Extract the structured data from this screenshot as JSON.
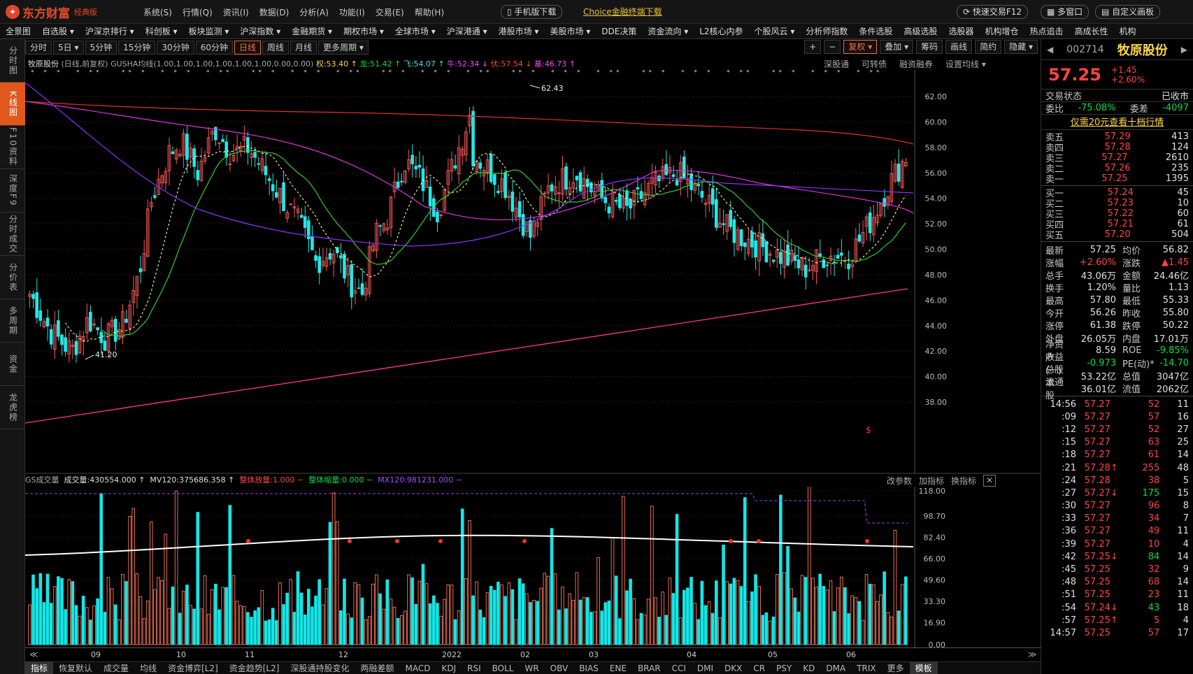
{
  "app": {
    "logo_name": "东方财富",
    "edition": "经典版",
    "icon": "logo-icon"
  },
  "menu": [
    "系统(S)",
    "行情(Q)",
    "资讯(I)",
    "数据(D)",
    "分析(A)",
    "功能(I)",
    "交易(E)",
    "帮助(H)"
  ],
  "top_buttons": {
    "mobile": "手机版下载",
    "choice": "Choice金融终端下载",
    "quick_trade": "快速交易F12",
    "multi_window": "多窗口",
    "custom_layout": "自定义画板"
  },
  "nav": [
    "全景图",
    "自选股 ▾",
    "沪深京排行 ▾",
    "科创板 ▾",
    "板块监测 ▾",
    "沪深指数 ▾",
    "金融期货 ▾",
    "期权市场 ▾",
    "全球市场 ▾",
    "沪深港通 ▾",
    "港股市场 ▾",
    "美股市场 ▾",
    "DDE决策",
    "资金流向 ▾",
    "L2核心内参",
    "个股风云 ▾",
    "分析师指数",
    "条件选股",
    "高级选股",
    "选股器",
    "机构增仓",
    "热点追击",
    "高成长性",
    "机构"
  ],
  "left_tabs": [
    "分时图",
    "K线图",
    "F10资料",
    "深度F9",
    "分时成交",
    "分价表",
    "多周期",
    "资金",
    "龙虎榜"
  ],
  "periods": [
    "分时",
    "5日 ▾",
    "5分钟",
    "15分钟",
    "30分钟",
    "60分钟",
    "日线",
    "周线",
    "月线",
    "更多周期 ▾"
  ],
  "right_tools": [
    "+",
    "−",
    "复权 ▾",
    "叠加 ▾",
    "筹码",
    "画线",
    "简约",
    "隐藏 ▾"
  ],
  "info_line": {
    "name": "牧原股份",
    "desc": "(日线,前复权) GUSHA均线(1.00,1.00,1.00,1.00,1.00,1.00,0.00,0.00)",
    "quan": "权:53.40 ↑",
    "long": "龙:51.42 ↑",
    "fei": "飞:54.07 ↑",
    "niu": "牛:52.34 ↓",
    "fu": "伏:57.54 ↓",
    "ji": "基:46.73 ↑"
  },
  "chart_links": [
    "深股通",
    "可转债",
    "融资融券",
    "设置均线 ▾"
  ],
  "chart_data": {
    "type": "candlestick",
    "price_axis": [
      62.0,
      60.0,
      58.0,
      56.0,
      54.0,
      52.0,
      50.0,
      48.0,
      46.0,
      44.0,
      42.0,
      40.0,
      38.0
    ],
    "high_label": "62.43",
    "low_label": "41.20",
    "months": [
      "09",
      "10",
      "11",
      "12",
      "2022",
      "02",
      "03",
      "04",
      "05",
      "06"
    ],
    "vol_axis": [
      "118.00",
      "98.70",
      "82.40",
      "66.00",
      "49.60",
      "33.30",
      "16.90",
      "0.00"
    ]
  },
  "vol_header": {
    "name": "GS成交量",
    "vol": "成交量:430554.000 ↑",
    "mv": "MV120:375686.358 ↑",
    "up": "整体放量:1.000 −",
    "down": "整体缩量:0.000 −",
    "mx": "MX120:981231.000 −",
    "links": [
      "改参数",
      "加指标",
      "换指标"
    ]
  },
  "bottom_tabs": [
    "指标",
    "恢复默认",
    "成交量",
    "均线",
    "资金博弈[L2]",
    "资金趋势[L2]",
    "深股通持股变化",
    "两融差额",
    "MACD",
    "KDJ",
    "RSI",
    "BOLL",
    "WR",
    "OBV",
    "BIAS",
    "ENE",
    "BRAR",
    "CCI",
    "DMI",
    "DKX",
    "CR",
    "PSY",
    "KD",
    "DMA",
    "TRIX",
    "更多",
    "模板"
  ],
  "stock": {
    "code": "002714",
    "name": "牧原股份",
    "price": "57.25",
    "change": "+1.45",
    "pct": "+2.60%",
    "status_label": "交易状态",
    "status": "已收市",
    "weibi_label": "委比",
    "weibi": "-75.08%",
    "weicha_label": "委差",
    "weicha": "-4097",
    "promo": "仅需20元查看十档行情"
  },
  "asks": [
    [
      "卖五",
      "57.29",
      "413"
    ],
    [
      "卖四",
      "57.28",
      "124"
    ],
    [
      "卖三",
      "57.27",
      "2610"
    ],
    [
      "卖二",
      "57.26",
      "235"
    ],
    [
      "卖一",
      "57.25",
      "1395"
    ]
  ],
  "bids": [
    [
      "买一",
      "57.24",
      "45"
    ],
    [
      "买二",
      "57.23",
      "10"
    ],
    [
      "买三",
      "57.22",
      "60"
    ],
    [
      "买四",
      "57.21",
      "61"
    ],
    [
      "买五",
      "57.20",
      "504"
    ]
  ],
  "stats": [
    [
      "最新",
      "57.25",
      "均价",
      "56.82"
    ],
    [
      "涨幅",
      "+2.60%",
      "涨跌",
      "▲1.45"
    ],
    [
      "总手",
      "43.06万",
      "金额",
      "24.46亿"
    ],
    [
      "换手",
      "1.20%",
      "量比",
      "1.13"
    ],
    [
      "最高",
      "57.80",
      "最低",
      "55.33"
    ],
    [
      "今开",
      "56.26",
      "昨收",
      "55.80"
    ],
    [
      "涨停",
      "61.38",
      "跌停",
      "50.22"
    ],
    [
      "外盘",
      "26.05万",
      "内盘",
      "17.01万"
    ],
    [
      "净资产",
      "8.59",
      "ROE",
      "-9.85%"
    ],
    [
      "收益(一)",
      "-0.973",
      "PE(动)*",
      "-14.70"
    ],
    [
      "总股本",
      "53.22亿",
      "总值",
      "3047亿"
    ],
    [
      "流通股",
      "36.01亿",
      "流值",
      "2062亿"
    ]
  ],
  "ticks": [
    [
      "14:56",
      "57.27",
      "52",
      "11"
    ],
    [
      ":09",
      "57.27",
      "57",
      "16"
    ],
    [
      ":12",
      "57.27",
      "52",
      "27"
    ],
    [
      ":15",
      "57.27",
      "63",
      "25"
    ],
    [
      ":18",
      "57.27",
      "61",
      "14"
    ],
    [
      ":21",
      "57.28↑",
      "255",
      "48"
    ],
    [
      ":24",
      "57.28",
      "38",
      "5"
    ],
    [
      ":27",
      "57.27↓",
      "175",
      "15"
    ],
    [
      ":30",
      "57.27",
      "96",
      "8"
    ],
    [
      ":33",
      "57.27",
      "34",
      "7"
    ],
    [
      ":36",
      "57.27",
      "49",
      "11"
    ],
    [
      ":39",
      "57.27",
      "10",
      "4"
    ],
    [
      ":42",
      "57.25↓",
      "84",
      "14"
    ],
    [
      ":45",
      "57.25",
      "32",
      "9"
    ],
    [
      ":48",
      "57.25",
      "68",
      "14"
    ],
    [
      ":51",
      "57.25",
      "23",
      "11"
    ],
    [
      ":54",
      "57.24↓",
      "43",
      "18"
    ],
    [
      ":57",
      "57.25↑",
      "5",
      "4"
    ],
    [
      "14:57",
      "57.25",
      "57",
      "17"
    ]
  ]
}
